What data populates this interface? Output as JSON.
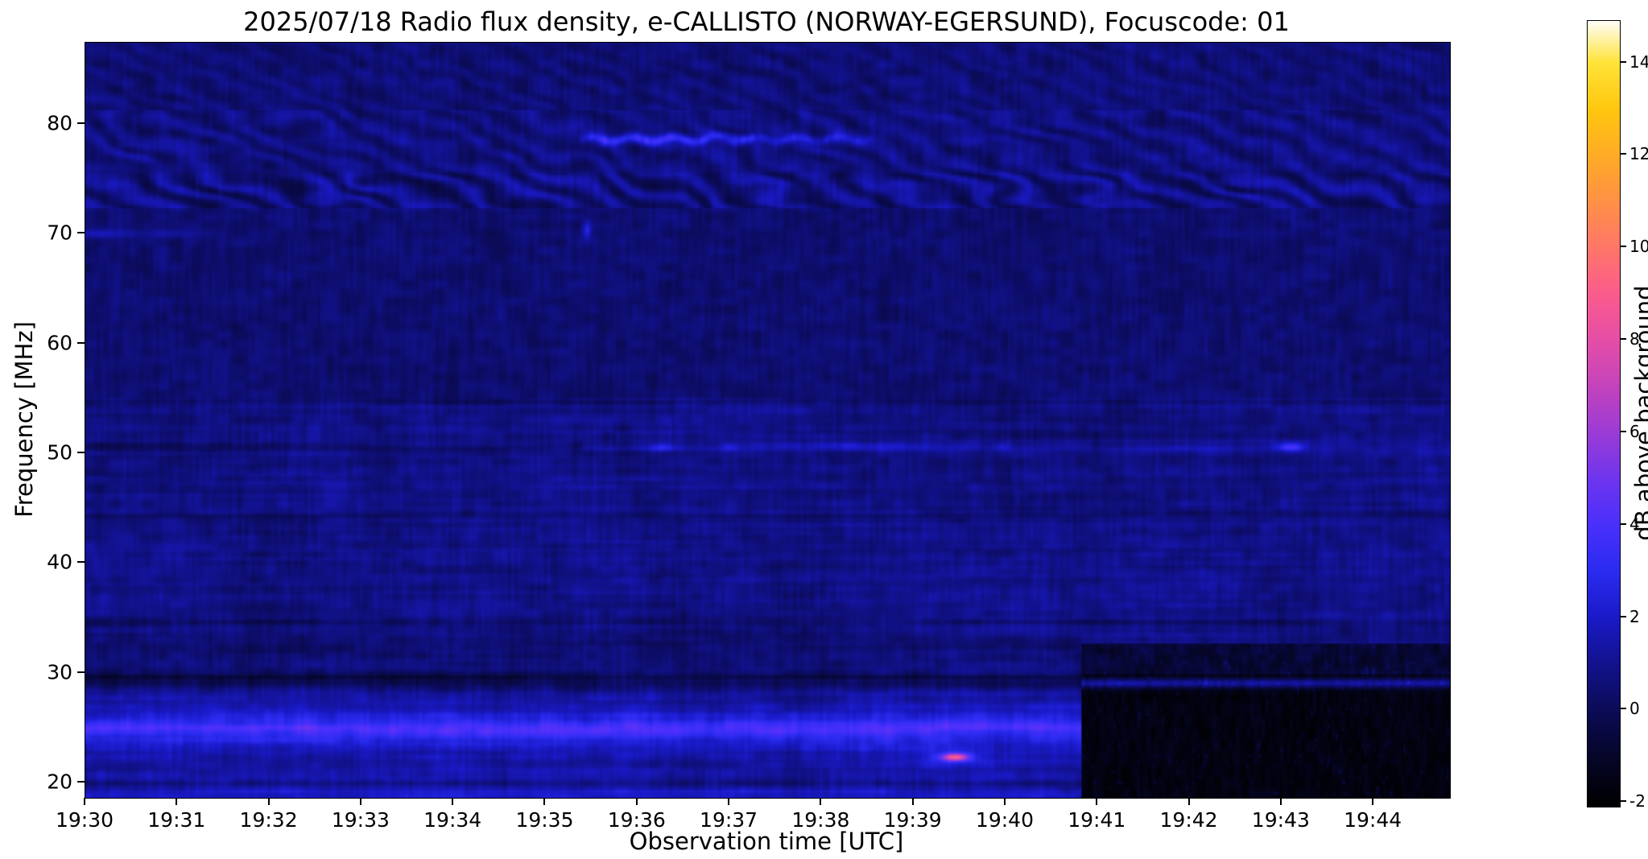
{
  "chart_data": {
    "type": "heatmap",
    "title": "2025/07/18  Radio flux density, e-CALLISTO (NORWAY-EGERSUND), Focuscode: 01",
    "xlabel": "Observation time [UTC]",
    "ylabel": "Frequency [MHz]",
    "colorbar_label": "dB above background",
    "x_tick_labels": [
      "19:30",
      "19:31",
      "19:32",
      "19:33",
      "19:34",
      "19:35",
      "19:36",
      "19:37",
      "19:38",
      "19:39",
      "19:40",
      "19:41",
      "19:42",
      "19:43",
      "19:44"
    ],
    "x_range_minutes": [
      0,
      14.83
    ],
    "y_tick_values": [
      20,
      30,
      40,
      50,
      60,
      70,
      80
    ],
    "freq_range_mhz": [
      18.6,
      87.4
    ],
    "colorbar_tick_values": [
      14,
      12,
      10,
      8,
      6,
      4,
      2,
      0,
      -2
    ],
    "value_range_db": [
      -2.1,
      14.9
    ],
    "colormap_stops": [
      [
        -2.1,
        "#000000"
      ],
      [
        -1.0,
        "#06062a"
      ],
      [
        0.0,
        "#0b0b58"
      ],
      [
        1.0,
        "#12128e"
      ],
      [
        2.0,
        "#1a1ac8"
      ],
      [
        3.0,
        "#2b2bf0"
      ],
      [
        4.0,
        "#4a30fb"
      ],
      [
        5.0,
        "#6f35ee"
      ],
      [
        6.0,
        "#9c3bd6"
      ],
      [
        7.0,
        "#c443bc"
      ],
      [
        8.0,
        "#e54ea6"
      ],
      [
        9.0,
        "#fb5c8d"
      ],
      [
        10.0,
        "#ff7668"
      ],
      [
        11.0,
        "#ff9145"
      ],
      [
        12.0,
        "#ffac26"
      ],
      [
        13.0,
        "#ffc70f"
      ],
      [
        14.0,
        "#ffe339"
      ],
      [
        14.9,
        "#fffef8"
      ]
    ],
    "background_level_db": 0.55,
    "texture": {
      "broad_noise_db": 0.7,
      "fine_column_db": 0.55,
      "block_column_db": 0.5,
      "hband_db": 0.6,
      "low_region_freq_max": 55,
      "low_region_boost_db": 0.25,
      "mid_quiet_min": 55,
      "mid_quiet_max": 72,
      "mid_quiet_db": -0.1,
      "top_ripple_db": 0.25
    },
    "features": {
      "lower_bright_region": {
        "freq_max": 29.5,
        "boost_db": 0.55
      },
      "bottom_rows": {
        "freq_max": 19.4,
        "boost_db": 0.5
      },
      "bright_band": {
        "freq_center": 24.8,
        "freq_sigma": 1.05,
        "core_center": 25.0,
        "core_sigma": 0.45,
        "amplitude_db": 1.9,
        "core_amplitude_db": 0.7,
        "t_end": 10.83
      },
      "dark_lane_29": {
        "freq_center": 29.25,
        "freq_sigma": 0.55,
        "depth_db": 1.35,
        "t_end": 10.83,
        "extra_depth_before_min": 5.6,
        "extra_depth_db": 0.35
      },
      "dark_lane_32": {
        "freq_center": 32.3,
        "freq_sigma": 0.8,
        "depth_db": 0.5,
        "t_end": 10.83
      },
      "quiet_dark_region": {
        "t_start": 10.83,
        "freq_max": 32.6,
        "level_db": -1.65,
        "speckle_db": 0.7,
        "line_freq": 29.05,
        "line_sigma": 0.32,
        "line_amplitude_db": 2.9,
        "upper_band_min": 29.9,
        "upper_band_boost_db": 0.9
      },
      "pink_burst": {
        "t_center": 9.45,
        "t_sigma": 0.11,
        "freq_center": 22.3,
        "freq_sigma": 0.24,
        "amplitude_db": 6.5,
        "halo_t_sigma": 0.3,
        "halo_freq_sigma": 0.9,
        "halo_db": 1.1
      },
      "streak_78": {
        "freq_center": 78.6,
        "t_start": 5.35,
        "t_end": 8.75,
        "amplitude_db": 2.5,
        "fade_start": 6.7,
        "end_amplitude_db": 1.2,
        "freq_sigma": 0.32,
        "wobble": 0.22
      },
      "line_70": {
        "freq_center": 70.0,
        "freq_sigma": 0.3,
        "t_end": 1.55,
        "amplitude_db": 1.5
      },
      "spot_70_dash": {
        "t": 5.45,
        "t_sigma": 0.035,
        "freq_center": 70.3,
        "freq_sigma": 0.6,
        "db": 2.3
      },
      "line_50": {
        "freq_center": 50.55,
        "freq_sigma": 0.3,
        "base_db": 0.5,
        "dark_t_end": 5.4,
        "dark_db": 0.75,
        "spots": [
          {
            "t": 6.25,
            "w": 0.1,
            "db": 1.7
          },
          {
            "t": 7.0,
            "w": 0.06,
            "db": 1.3
          },
          {
            "t": 8.6,
            "w": 0.55,
            "db": 0.9
          },
          {
            "t": 9.95,
            "w": 0.08,
            "db": 1.0
          },
          {
            "t": 11.9,
            "w": 0.3,
            "db": 0.7
          },
          {
            "t": 13.1,
            "w": 0.1,
            "db": 2.6
          }
        ]
      },
      "rfi_waves": {
        "freq_min": 72.3,
        "freq_max": 81.3,
        "strong_below": 75.6,
        "strong_amp_db": 0.8,
        "weak_amp_db": 0.45,
        "base_boost_db": 0.15
      },
      "dark_lines": [
        {
          "freq": 34.6,
          "sigma": 0.18,
          "depth_db": 0.55
        },
        {
          "freq": 44.3,
          "sigma": 0.18,
          "depth_db": 0.5
        },
        {
          "freq": 54.7,
          "sigma": 0.18,
          "depth_db": 0.45
        },
        {
          "freq": 19.9,
          "sigma": 0.2,
          "depth_db": 0.6
        }
      ]
    }
  }
}
